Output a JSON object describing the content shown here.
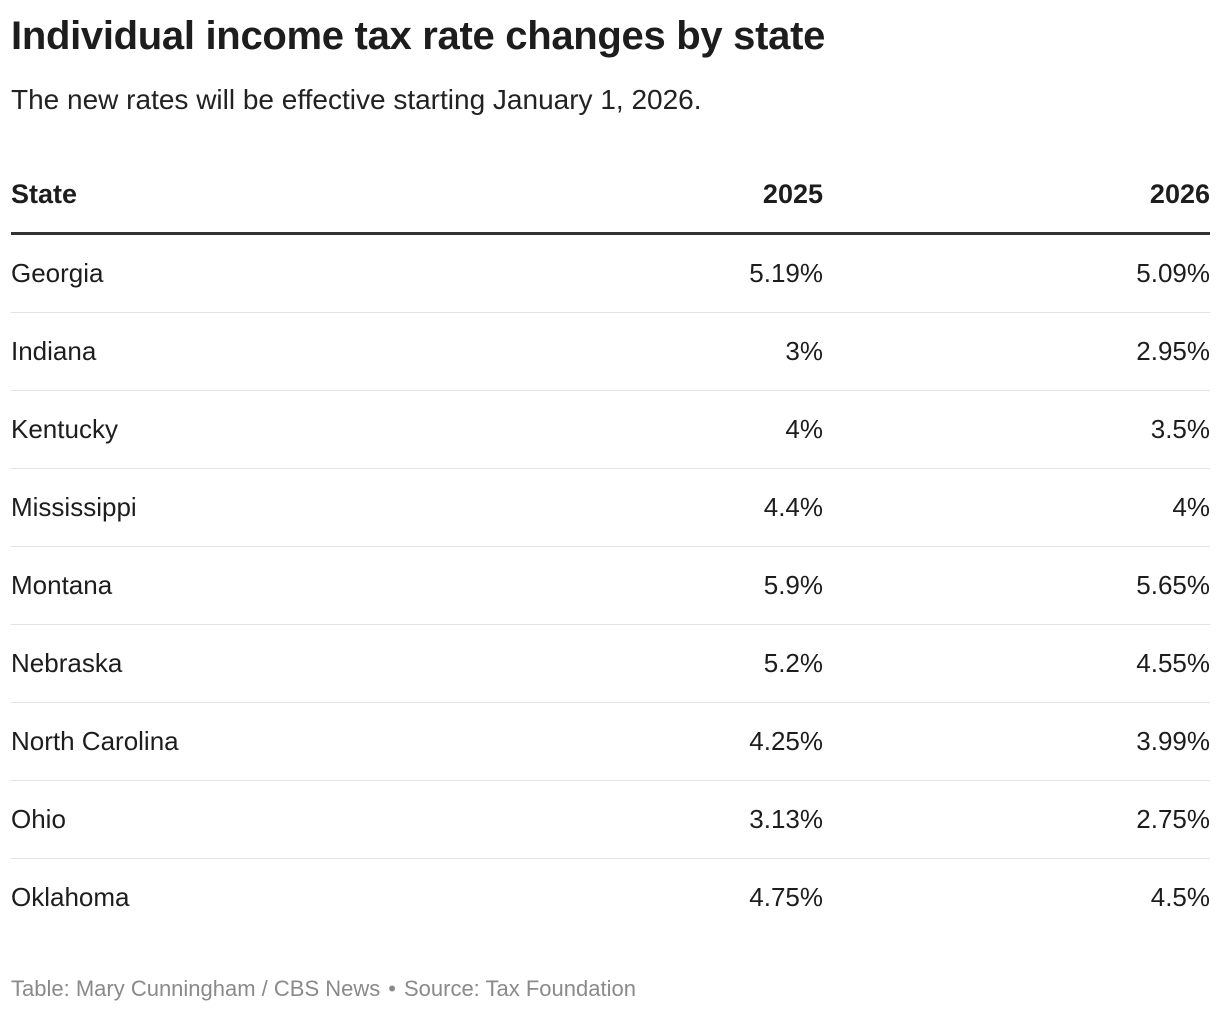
{
  "chart_data": {
    "type": "table",
    "title": "Individual income tax rate changes by state",
    "subtitle": "The new rates will be effective starting January 1, 2026.",
    "columns": [
      "State",
      "2025",
      "2026"
    ],
    "rows": [
      [
        "Georgia",
        "5.19%",
        "5.09%"
      ],
      [
        "Indiana",
        "3%",
        "2.95%"
      ],
      [
        "Kentucky",
        "4%",
        "3.5%"
      ],
      [
        "Mississippi",
        "4.4%",
        "4%"
      ],
      [
        "Montana",
        "5.9%",
        "5.65%"
      ],
      [
        "Nebraska",
        "5.2%",
        "4.55%"
      ],
      [
        "North Carolina",
        "4.25%",
        "3.99%"
      ],
      [
        "Ohio",
        "3.13%",
        "2.75%"
      ],
      [
        "Oklahoma",
        "4.75%",
        "4.5%"
      ]
    ]
  },
  "footer": {
    "credit": "Table: Mary Cunningham / CBS News",
    "separator": "•",
    "source": "Source: Tax Foundation"
  }
}
